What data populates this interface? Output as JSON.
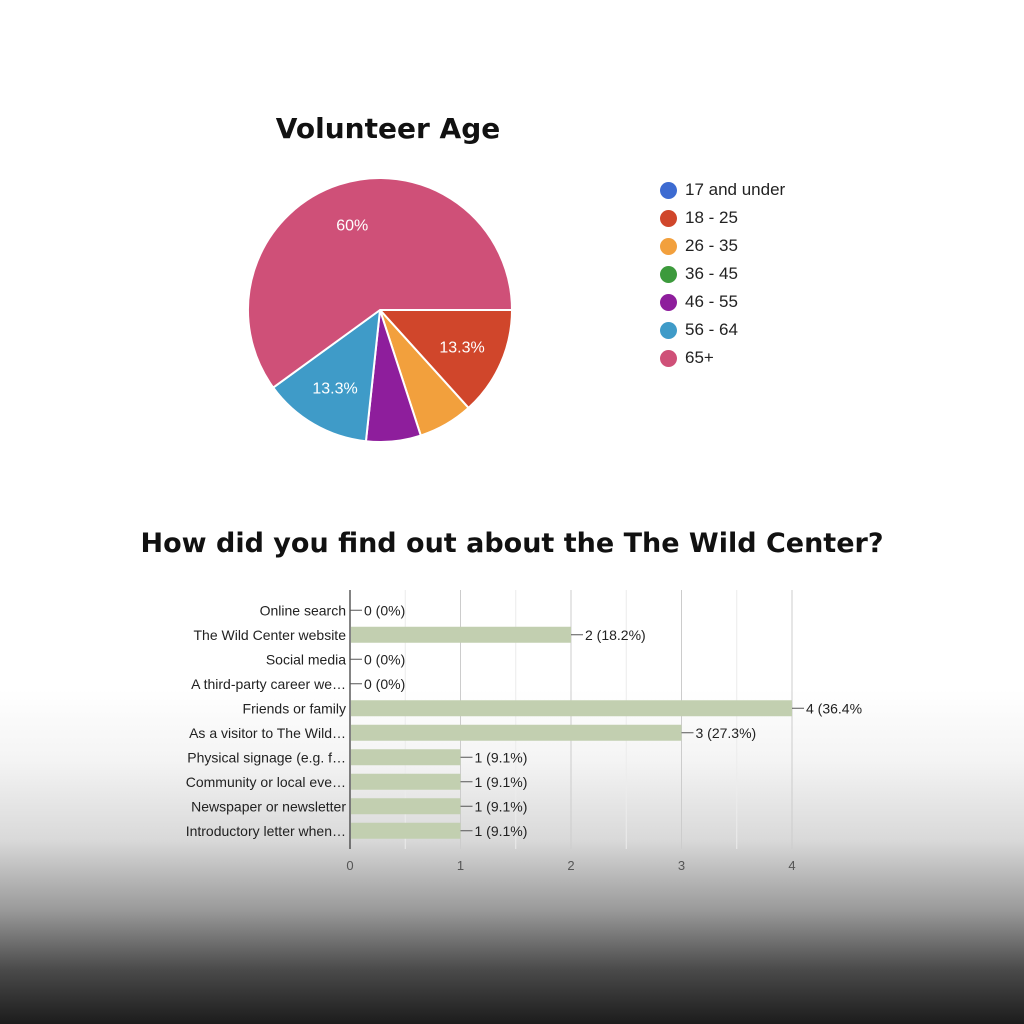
{
  "chart_data": [
    {
      "type": "pie",
      "title": "Volunteer Age",
      "categories": [
        "17 and under",
        "18 - 25",
        "26 - 35",
        "36 - 45",
        "46 - 55",
        "56 - 64",
        "65+"
      ],
      "values": [
        0,
        13.3,
        6.7,
        0,
        6.7,
        13.3,
        60
      ],
      "colors": [
        "#3d6bd1",
        "#d0462b",
        "#f2a03d",
        "#3c9a3c",
        "#8e1e9c",
        "#3f9bc8",
        "#cf5078"
      ],
      "data_labels": [
        "",
        "13.3%",
        "",
        "",
        "",
        "13.3%",
        "60%"
      ],
      "legend_position": "right"
    },
    {
      "type": "bar",
      "orientation": "horizontal",
      "title": "How did you find out about the The Wild Center?",
      "categories": [
        "Online search",
        "The Wild Center website",
        "Social media",
        "A third-party career we…",
        "Friends or family",
        "As a visitor to The Wild…",
        "Physical signage (e.g. f…",
        "Community or local eve…",
        "Newspaper or newsletter",
        "Introductory letter when…"
      ],
      "values": [
        0,
        2,
        0,
        0,
        4,
        3,
        1,
        1,
        1,
        1
      ],
      "data_labels": [
        "0 (0%)",
        "2 (18.2%)",
        "0 (0%)",
        "0 (0%)",
        "4 (36.4%",
        "3 (27.3%)",
        "1 (9.1%)",
        "1 (9.1%)",
        "1 (9.1%)",
        "1 (9.1%)"
      ],
      "xlim": [
        0,
        4
      ],
      "x_ticks": [
        "0",
        "1",
        "2",
        "3",
        "4"
      ],
      "grid": true,
      "bar_color": "#c2cfb0"
    }
  ]
}
